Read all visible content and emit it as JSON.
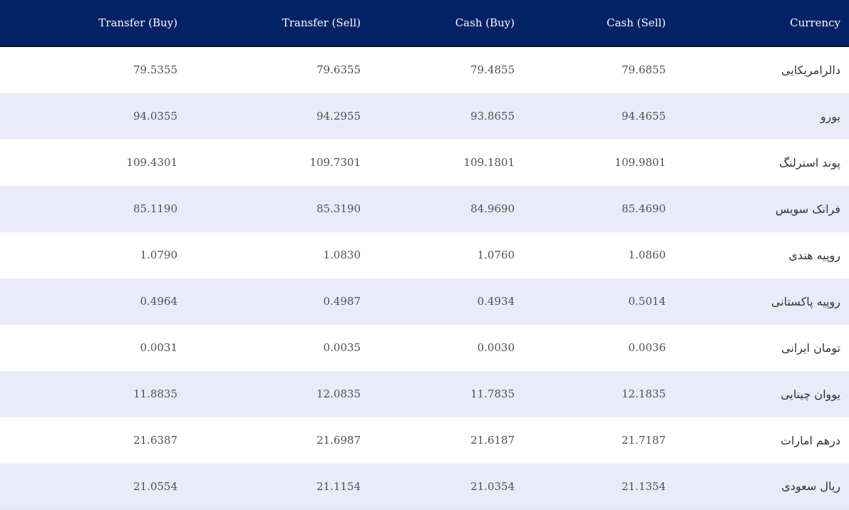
{
  "table": {
    "headers": {
      "transfer_buy": "Transfer (Buy)",
      "transfer_sell": "Transfer (Sell)",
      "cash_buy": "Cash (Buy)",
      "cash_sell": "Cash (Sell)",
      "currency": "Currency"
    },
    "rows": [
      {
        "currency": "دالرامریکایی",
        "cash_sell": "79.6855",
        "cash_buy": "79.4855",
        "transfer_sell": "79.6355",
        "transfer_buy": "79.5355"
      },
      {
        "currency": "یورو",
        "cash_sell": "94.4655",
        "cash_buy": "93.8655",
        "transfer_sell": "94.2955",
        "transfer_buy": "94.0355"
      },
      {
        "currency": "پوند استرلنگ",
        "cash_sell": "109.9801",
        "cash_buy": "109.1801",
        "transfer_sell": "109.7301",
        "transfer_buy": "109.4301"
      },
      {
        "currency": "فرانک سویس",
        "cash_sell": "85.4690",
        "cash_buy": "84.9690",
        "transfer_sell": "85.3190",
        "transfer_buy": "85.1190"
      },
      {
        "currency": "روپیه هندی",
        "cash_sell": "1.0860",
        "cash_buy": "1.0760",
        "transfer_sell": "1.0830",
        "transfer_buy": "1.0790"
      },
      {
        "currency": "روپیه پاکستانی",
        "cash_sell": "0.5014",
        "cash_buy": "0.4934",
        "transfer_sell": "0.4987",
        "transfer_buy": "0.4964"
      },
      {
        "currency": "تومان ایرانی",
        "cash_sell": "0.0036",
        "cash_buy": "0.0030",
        "transfer_sell": "0.0035",
        "transfer_buy": "0.0031"
      },
      {
        "currency": "یووان چینایی",
        "cash_sell": "12.1835",
        "cash_buy": "11.7835",
        "transfer_sell": "12.0835",
        "transfer_buy": "11.8835"
      },
      {
        "currency": "درهم امارات",
        "cash_sell": "21.7187",
        "cash_buy": "21.6187",
        "transfer_sell": "21.6987",
        "transfer_buy": "21.6387"
      },
      {
        "currency": "ریال سعودی",
        "cash_sell": "21.1354",
        "cash_buy": "21.0354",
        "transfer_sell": "21.1154",
        "transfer_buy": "21.0554"
      }
    ]
  },
  "colors": {
    "header_bg": "#012266",
    "header_text": "#ffffff",
    "row_alt_bg": "#e9ebf8",
    "cell_text": "#505050"
  }
}
